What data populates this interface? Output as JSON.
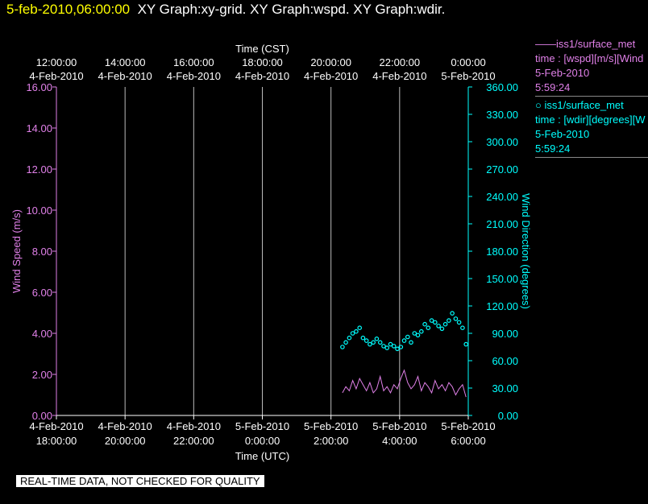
{
  "header": {
    "timestamp": "5-feb-2010,06:00:00",
    "title": "XY Graph:xy-grid.  XY Graph:wspd.  XY Graph:wdir."
  },
  "legend": [
    {
      "marker": "——",
      "name": "iss1/surface_met",
      "desc": "time : [wspd][m/s][Wind",
      "date": "5-Feb-2010",
      "time": "5:59:24",
      "color": "#e080e8"
    },
    {
      "marker": "○",
      "name": "iss1/surface_met",
      "desc": "time : [wdir][degrees][W",
      "date": "5-Feb-2010",
      "time": "5:59:24",
      "color": "#00ffff"
    }
  ],
  "quality_note": "REAL-TIME DATA, NOT CHECKED FOR QUALITY",
  "chart_data": {
    "type": "line",
    "top_axis": {
      "label": "Time (CST)",
      "ticks": [
        {
          "time": "12:00:00",
          "date": "4-Feb-2010"
        },
        {
          "time": "14:00:00",
          "date": "4-Feb-2010"
        },
        {
          "time": "16:00:00",
          "date": "4-Feb-2010"
        },
        {
          "time": "18:00:00",
          "date": "4-Feb-2010"
        },
        {
          "time": "20:00:00",
          "date": "4-Feb-2010"
        },
        {
          "time": "22:00:00",
          "date": "4-Feb-2010"
        },
        {
          "time": "0:00:00",
          "date": "5-Feb-2010"
        }
      ]
    },
    "bottom_axis": {
      "label": "Time (UTC)",
      "ticks": [
        {
          "date": "4-Feb-2010",
          "time": "18:00:00"
        },
        {
          "date": "4-Feb-2010",
          "time": "20:00:00"
        },
        {
          "date": "4-Feb-2010",
          "time": "22:00:00"
        },
        {
          "date": "5-Feb-2010",
          "time": "0:00:00"
        },
        {
          "date": "5-Feb-2010",
          "time": "2:00:00"
        },
        {
          "date": "5-Feb-2010",
          "time": "4:00:00"
        },
        {
          "date": "5-Feb-2010",
          "time": "6:00:00"
        }
      ]
    },
    "xlim": [
      "2010-02-04 18:00",
      "2010-02-05 06:00"
    ],
    "grid": true,
    "left_axis": {
      "label": "Wind Speed (m/s)",
      "ylim": [
        0,
        16
      ],
      "ticks": [
        "0.00",
        "2.00",
        "4.00",
        "6.00",
        "8.00",
        "10.00",
        "12.00",
        "14.00",
        "16.00"
      ],
      "color": "#e080e8"
    },
    "right_axis": {
      "label": "Wind Direction (degrees)",
      "ylim": [
        0,
        360
      ],
      "ticks": [
        "0.00",
        "30.00",
        "60.00",
        "90.00",
        "120.00",
        "150.00",
        "180.00",
        "210.00",
        "240.00",
        "270.00",
        "300.00",
        "330.00",
        "360.00"
      ],
      "color": "#00ffff"
    },
    "series": [
      {
        "axis": "left",
        "style": "line",
        "color": "#e080e8",
        "x": [
          "02:20",
          "02:26",
          "02:32",
          "02:38",
          "02:44",
          "02:50",
          "02:56",
          "03:02",
          "03:08",
          "03:14",
          "03:20",
          "03:26",
          "03:32",
          "03:38",
          "03:44",
          "03:50",
          "03:56",
          "04:02",
          "04:08",
          "04:14",
          "04:20",
          "04:26",
          "04:32",
          "04:38",
          "04:44",
          "04:50",
          "04:56",
          "05:02",
          "05:08",
          "05:14",
          "05:20",
          "05:26",
          "05:32",
          "05:38",
          "05:44",
          "05:50",
          "05:56"
        ],
        "y": [
          1.1,
          1.4,
          1.2,
          1.7,
          1.3,
          1.8,
          1.5,
          1.2,
          1.6,
          1.1,
          1.3,
          1.9,
          1.2,
          1.4,
          1.1,
          1.5,
          1.3,
          1.8,
          2.2,
          1.6,
          1.3,
          1.5,
          1.9,
          1.2,
          1.6,
          1.4,
          1.1,
          1.7,
          1.3,
          1.5,
          1.2,
          1.6,
          1.4,
          1.0,
          1.3,
          1.5,
          0.9
        ]
      },
      {
        "axis": "right",
        "style": "scatter",
        "color": "#00ffff",
        "x": [
          "02:20",
          "02:26",
          "02:32",
          "02:38",
          "02:44",
          "02:50",
          "02:56",
          "03:02",
          "03:08",
          "03:14",
          "03:20",
          "03:26",
          "03:32",
          "03:38",
          "03:44",
          "03:50",
          "03:56",
          "04:02",
          "04:08",
          "04:14",
          "04:20",
          "04:26",
          "04:32",
          "04:38",
          "04:44",
          "04:50",
          "04:56",
          "05:02",
          "05:08",
          "05:14",
          "05:20",
          "05:26",
          "05:32",
          "05:38",
          "05:44",
          "05:50",
          "05:56"
        ],
        "y": [
          75,
          80,
          85,
          90,
          92,
          96,
          85,
          82,
          78,
          80,
          84,
          80,
          76,
          74,
          78,
          76,
          73,
          75,
          82,
          86,
          80,
          90,
          88,
          92,
          100,
          96,
          104,
          102,
          98,
          95,
          100,
          104,
          112,
          106,
          102,
          96,
          78
        ]
      }
    ]
  }
}
